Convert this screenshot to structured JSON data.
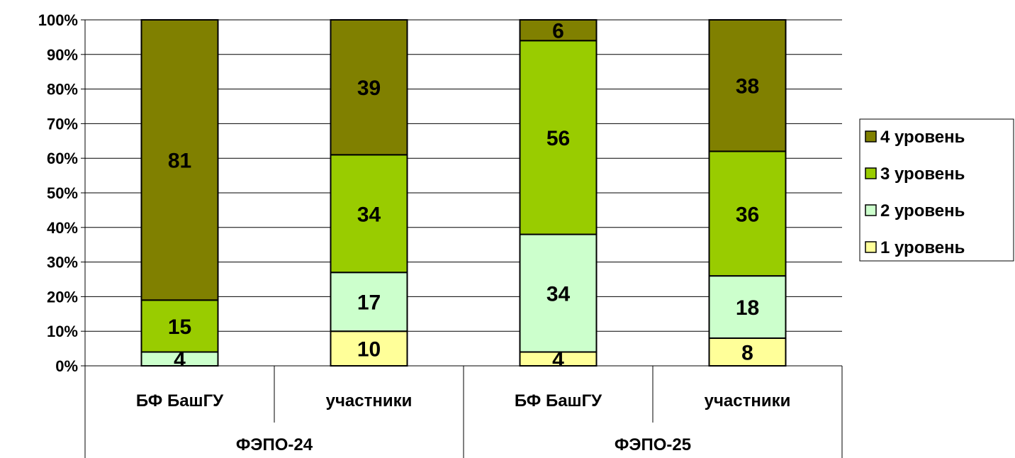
{
  "chart_data": {
    "type": "bar",
    "stacked": true,
    "percent_scale": true,
    "categories": [
      "БФ БашГУ",
      "участники",
      "БФ БашГУ",
      "участники"
    ],
    "groups": [
      {
        "label": "ФЭПО-24",
        "categories": [
          0,
          1
        ]
      },
      {
        "label": "ФЭПО-25",
        "categories": [
          2,
          3
        ]
      }
    ],
    "series": [
      {
        "name": "1 уровень",
        "color": "#ffff99",
        "values": [
          0,
          10,
          4,
          8
        ],
        "labels": [
          "",
          "10",
          "4",
          "8"
        ]
      },
      {
        "name": "2 уровень",
        "color": "#ccffcc",
        "values": [
          4,
          17,
          34,
          18
        ],
        "labels": [
          "4",
          "17",
          "34",
          "18"
        ]
      },
      {
        "name": "3 уровень",
        "color": "#99cc00",
        "values": [
          15,
          34,
          56,
          36
        ],
        "labels": [
          "15",
          "34",
          "56",
          "36"
        ]
      },
      {
        "name": "4 уровень",
        "color": "#808000",
        "values": [
          81,
          39,
          6,
          38
        ],
        "labels": [
          "81",
          "39",
          "6",
          "38"
        ]
      }
    ],
    "y_ticks": [
      "0%",
      "10%",
      "20%",
      "30%",
      "40%",
      "50%",
      "60%",
      "70%",
      "80%",
      "90%",
      "100%"
    ],
    "ylim": [
      0,
      100
    ],
    "grid": true,
    "legend_position": "right"
  }
}
